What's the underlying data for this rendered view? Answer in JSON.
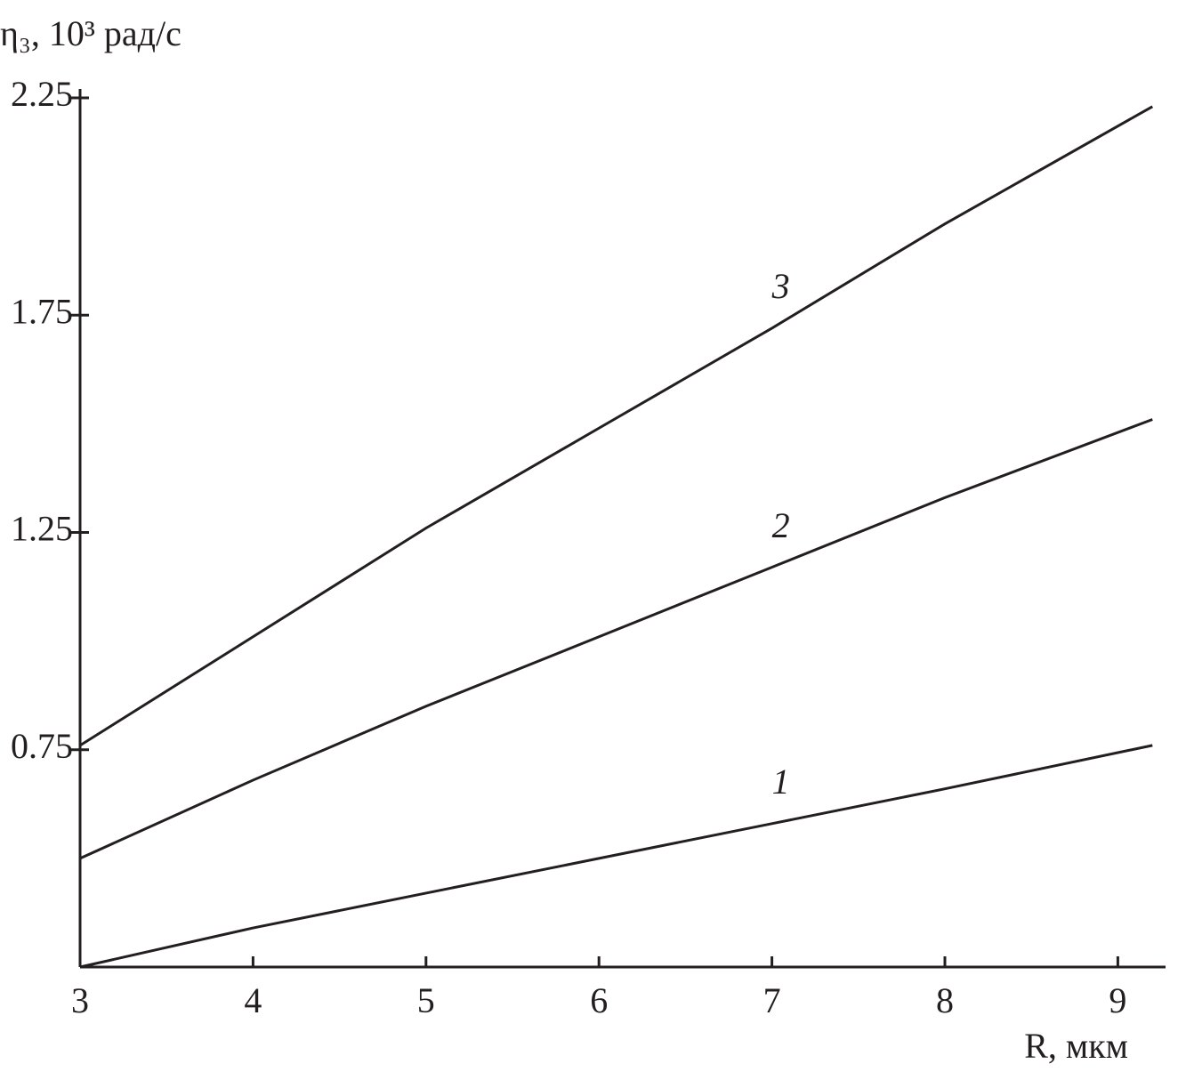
{
  "chart_data": {
    "type": "line",
    "y_label": "η₃, 10³  рад/с",
    "x_label": "R, мкм",
    "x": [
      3,
      4,
      5,
      6,
      7,
      8,
      9.2
    ],
    "series": [
      {
        "name": "1",
        "color": "#231f20",
        "values": [
          0.25,
          0.34,
          0.42,
          0.5,
          0.58,
          0.66,
          0.76
        ]
      },
      {
        "name": "2",
        "color": "#231f20",
        "values": [
          0.5,
          0.68,
          0.85,
          1.01,
          1.17,
          1.33,
          1.51
        ]
      },
      {
        "name": "3",
        "color": "#231f20",
        "values": [
          0.76,
          1.01,
          1.26,
          1.49,
          1.72,
          1.96,
          2.23
        ]
      }
    ],
    "xlim": [
      3,
      9.25
    ],
    "xticks": [
      3,
      4,
      5,
      6,
      7,
      8,
      9
    ],
    "ylim": [
      0.25,
      2.25
    ],
    "yticks": [
      0.75,
      1.25,
      1.75,
      2.25
    ],
    "grid": false
  }
}
